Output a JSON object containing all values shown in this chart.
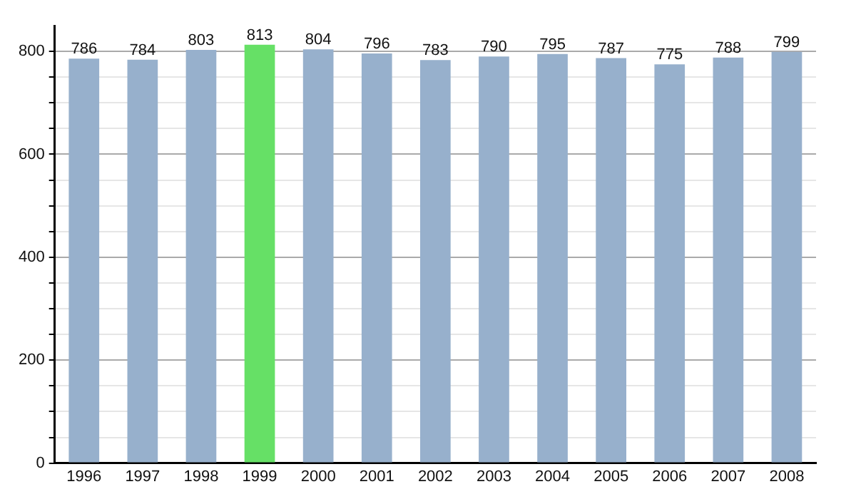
{
  "chart_data": {
    "type": "bar",
    "categories": [
      "1996",
      "1997",
      "1998",
      "1999",
      "2000",
      "2001",
      "2002",
      "2003",
      "2004",
      "2005",
      "2006",
      "2007",
      "2008"
    ],
    "values": [
      786,
      784,
      803,
      813,
      804,
      796,
      783,
      790,
      795,
      787,
      775,
      788,
      799
    ],
    "colors": [
      "#97b0cc",
      "#97b0cc",
      "#97b0cc",
      "#66e066",
      "#97b0cc",
      "#97b0cc",
      "#97b0cc",
      "#97b0cc",
      "#97b0cc",
      "#97b0cc",
      "#97b0cc",
      "#97b0cc",
      "#97b0cc"
    ],
    "ylim": [
      0,
      850
    ],
    "yticks": [
      0,
      {
        "value": 50,
        "label": null
      },
      {
        "value": 100,
        "label": null
      },
      {
        "value": 150,
        "label": null
      },
      200,
      {
        "value": 250,
        "label": null
      },
      {
        "value": 300,
        "label": null
      },
      {
        "value": 350,
        "label": null
      },
      400,
      {
        "value": 450,
        "label": null
      },
      {
        "value": 500,
        "label": null
      },
      {
        "value": 550,
        "label": null
      },
      600,
      {
        "value": 650,
        "label": null
      },
      {
        "value": 700,
        "label": null
      },
      {
        "value": 750,
        "label": null
      },
      800
    ],
    "grid": "y",
    "data_labels": true,
    "legend": false
  }
}
